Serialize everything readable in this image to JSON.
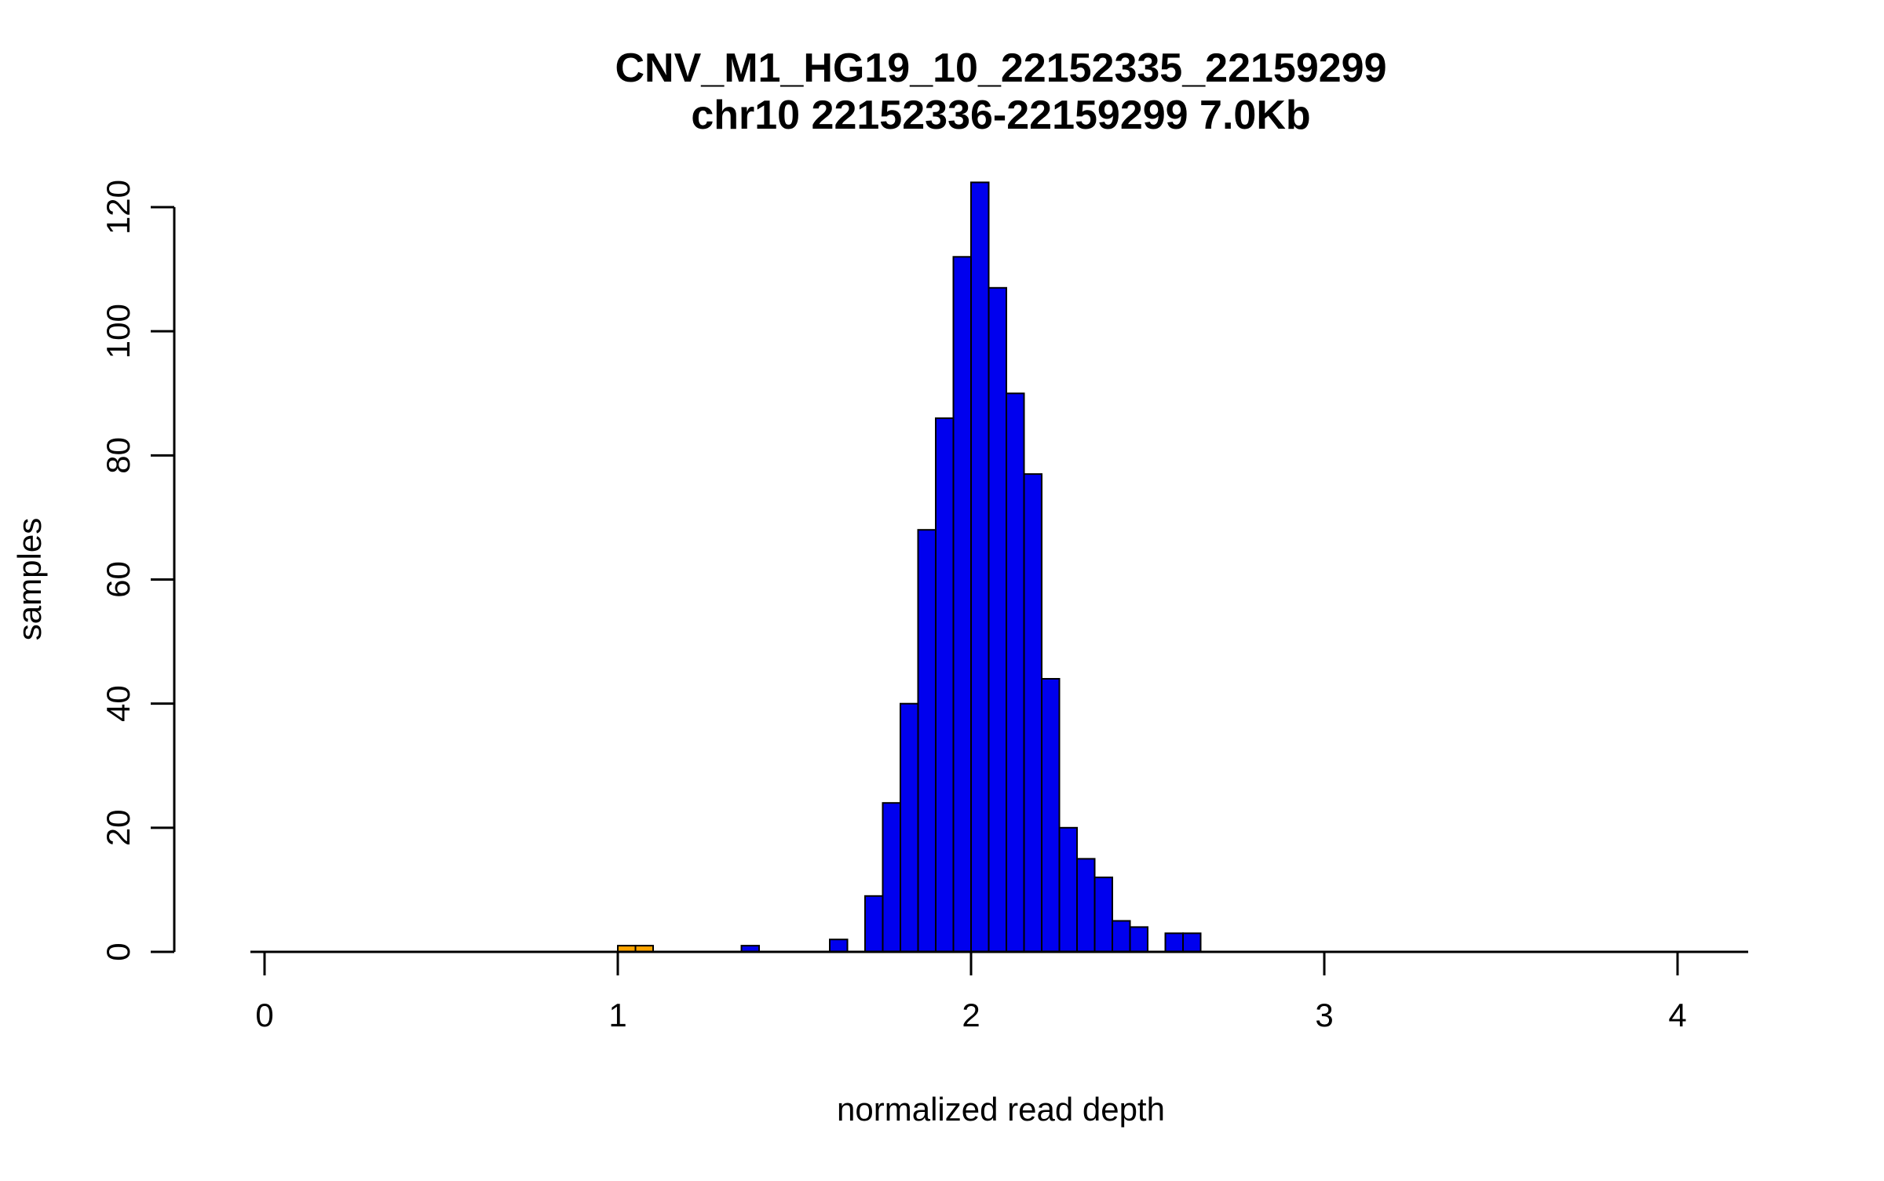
{
  "title": "CNV_M1_HG19_10_22152335_22159299",
  "subtitle": "chr10 22152336-22159299 7.0Kb",
  "chart_data": {
    "type": "bar",
    "variant": "histogram",
    "title": "CNV_M1_HG19_10_22152335_22159299",
    "subtitle": "chr10 22152336-22159299 7.0Kb",
    "xlabel": "normalized read depth",
    "ylabel": "samples",
    "xlim": [
      -0.04,
      4.2
    ],
    "ylim": [
      0,
      124
    ],
    "x_ticks": [
      0,
      1,
      2,
      3,
      4
    ],
    "y_ticks": [
      0,
      20,
      40,
      60,
      80,
      100,
      120
    ],
    "grid": false,
    "legend": "none",
    "bin_width": 0.05,
    "bar_fill_default": "#0000EE",
    "bar_fill_highlight": "#FFA500",
    "bar_edge_color": "#000000",
    "bins": [
      {
        "x0": 1.0,
        "count": 1,
        "color": "#FFA500"
      },
      {
        "x0": 1.05,
        "count": 1,
        "color": "#FFA500"
      },
      {
        "x0": 1.35,
        "count": 1,
        "color": "#0000EE"
      },
      {
        "x0": 1.6,
        "count": 2,
        "color": "#0000EE"
      },
      {
        "x0": 1.7,
        "count": 9,
        "color": "#0000EE"
      },
      {
        "x0": 1.75,
        "count": 24,
        "color": "#0000EE"
      },
      {
        "x0": 1.8,
        "count": 40,
        "color": "#0000EE"
      },
      {
        "x0": 1.85,
        "count": 68,
        "color": "#0000EE"
      },
      {
        "x0": 1.9,
        "count": 86,
        "color": "#0000EE"
      },
      {
        "x0": 1.95,
        "count": 112,
        "color": "#0000EE"
      },
      {
        "x0": 2.0,
        "count": 124,
        "color": "#0000EE"
      },
      {
        "x0": 2.05,
        "count": 107,
        "color": "#0000EE"
      },
      {
        "x0": 2.1,
        "count": 90,
        "color": "#0000EE"
      },
      {
        "x0": 2.15,
        "count": 77,
        "color": "#0000EE"
      },
      {
        "x0": 2.2,
        "count": 44,
        "color": "#0000EE"
      },
      {
        "x0": 2.25,
        "count": 20,
        "color": "#0000EE"
      },
      {
        "x0": 2.3,
        "count": 15,
        "color": "#0000EE"
      },
      {
        "x0": 2.35,
        "count": 12,
        "color": "#0000EE"
      },
      {
        "x0": 2.4,
        "count": 5,
        "color": "#0000EE"
      },
      {
        "x0": 2.45,
        "count": 4,
        "color": "#0000EE"
      },
      {
        "x0": 2.55,
        "count": 3,
        "color": "#0000EE"
      },
      {
        "x0": 2.6,
        "count": 3,
        "color": "#0000EE"
      }
    ]
  }
}
